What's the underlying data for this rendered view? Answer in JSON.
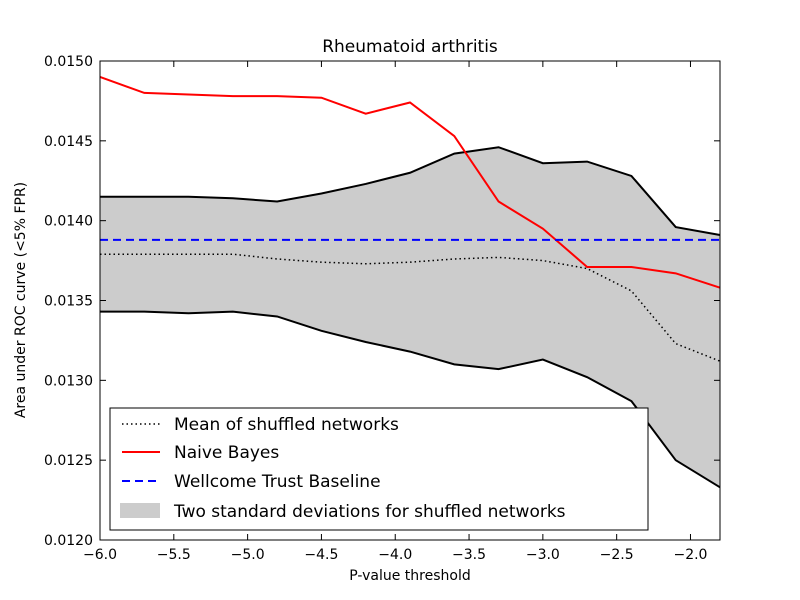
{
  "chart_data": {
    "type": "line",
    "title": "Rheumatoid arthritis",
    "xlabel": "P-value threshold",
    "ylabel": "Area under ROC curve (<5% FPR)",
    "xlim": [
      -6.0,
      -1.8
    ],
    "ylim": [
      0.012,
      0.015
    ],
    "xticks": [
      -6.0,
      -5.5,
      -5.0,
      -4.5,
      -4.0,
      -3.5,
      -3.0,
      -2.5,
      -2.0
    ],
    "xtick_labels": [
      "−6.0",
      "−5.5",
      "−5.0",
      "−4.5",
      "−4.0",
      "−3.5",
      "−3.0",
      "−2.5",
      "−2.0"
    ],
    "yticks": [
      0.012,
      0.0125,
      0.013,
      0.0135,
      0.014,
      0.0145,
      0.015
    ],
    "ytick_labels": [
      "0.0120",
      "0.0125",
      "0.0130",
      "0.0135",
      "0.0140",
      "0.0145",
      "0.0150"
    ],
    "x": [
      -6.0,
      -5.7,
      -5.4,
      -5.1,
      -4.8,
      -4.5,
      -4.2,
      -3.9,
      -3.6,
      -3.3,
      -3.0,
      -2.7,
      -2.4,
      -2.1,
      -1.8
    ],
    "series": [
      {
        "name": "Mean of shuffled networks",
        "style": "dotted",
        "color": "#000000",
        "values": [
          0.01379,
          0.01379,
          0.01379,
          0.01379,
          0.01376,
          0.01374,
          0.01373,
          0.01374,
          0.01376,
          0.01377,
          0.01375,
          0.0137,
          0.01356,
          0.01323,
          0.01312
        ]
      },
      {
        "name": "Naive Bayes",
        "style": "solid",
        "color": "#ff0000",
        "values": [
          0.0149,
          0.0148,
          0.01479,
          0.01478,
          0.01478,
          0.01477,
          0.01467,
          0.01474,
          0.01453,
          0.01412,
          0.01395,
          0.01371,
          0.01371,
          0.01367,
          0.01358
        ]
      },
      {
        "name": "Wellcome Trust Baseline",
        "style": "dashed",
        "color": "#0000ff",
        "values": [
          0.01388,
          0.01388,
          0.01388,
          0.01388,
          0.01388,
          0.01388,
          0.01388,
          0.01388,
          0.01388,
          0.01388,
          0.01388,
          0.01388,
          0.01388,
          0.01388,
          0.01388
        ]
      }
    ],
    "band": {
      "name": "Two standard deviations for shuffled networks",
      "color": "#cccccc",
      "upper": [
        0.01415,
        0.01415,
        0.01415,
        0.01414,
        0.01412,
        0.01417,
        0.01423,
        0.0143,
        0.01442,
        0.01446,
        0.01436,
        0.01437,
        0.01428,
        0.01396,
        0.01391
      ],
      "lower": [
        0.01343,
        0.01343,
        0.01342,
        0.01343,
        0.0134,
        0.01331,
        0.01324,
        0.01318,
        0.0131,
        0.01307,
        0.01313,
        0.01302,
        0.01287,
        0.0125,
        0.01233
      ]
    },
    "legend": "lower-left",
    "grid": false
  }
}
